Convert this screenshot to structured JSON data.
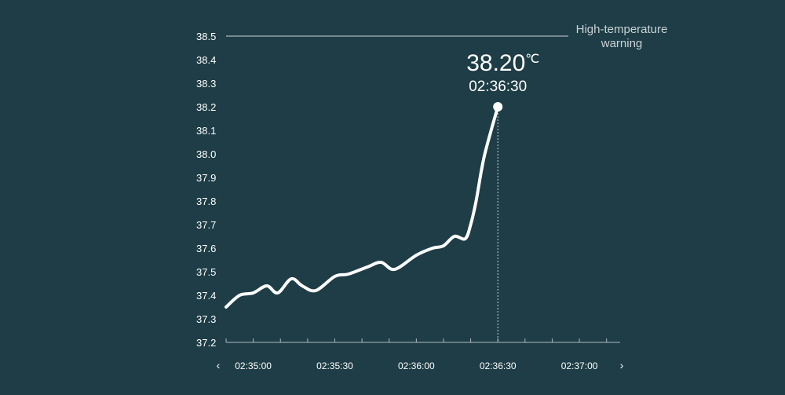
{
  "chart_data": {
    "type": "line",
    "y_ticks": [
      "37.2",
      "37.3",
      "37.4",
      "37.5",
      "37.6",
      "37.7",
      "37.8",
      "37.9",
      "38.0",
      "38.1",
      "38.2",
      "38.3",
      "38.4",
      "38.5"
    ],
    "ylim": [
      37.2,
      38.5
    ],
    "x_ticks": [
      "02:35:00",
      "02:35:30",
      "02:36:00",
      "02:36:30",
      "02:37:00"
    ],
    "xlim": [
      "02:34:50",
      "02:37:15"
    ],
    "series": [
      {
        "x": [
          "02:34:50",
          "02:34:55",
          "02:35:00",
          "02:35:05",
          "02:35:09",
          "02:35:14",
          "02:35:18",
          "02:35:23",
          "02:35:30",
          "02:35:35",
          "02:35:42",
          "02:35:47",
          "02:35:52",
          "02:36:00",
          "02:36:06",
          "02:36:10",
          "02:36:14",
          "02:36:18",
          "02:36:20",
          "02:36:22",
          "02:36:25",
          "02:36:30"
        ],
        "values": [
          37.35,
          37.4,
          37.41,
          37.44,
          37.41,
          37.47,
          37.44,
          37.42,
          37.48,
          37.49,
          37.52,
          37.54,
          37.51,
          37.57,
          37.6,
          37.61,
          37.65,
          37.64,
          37.7,
          37.8,
          37.99,
          38.2
        ]
      }
    ],
    "threshold": {
      "value": 38.5,
      "label": "High-temperature\nwarning"
    },
    "highlight": {
      "x": "02:36:30",
      "value": "38.20",
      "unit": "℃",
      "time": "02:36:30"
    },
    "grid": false
  },
  "nav": {
    "prev": "‹",
    "next": "›"
  }
}
